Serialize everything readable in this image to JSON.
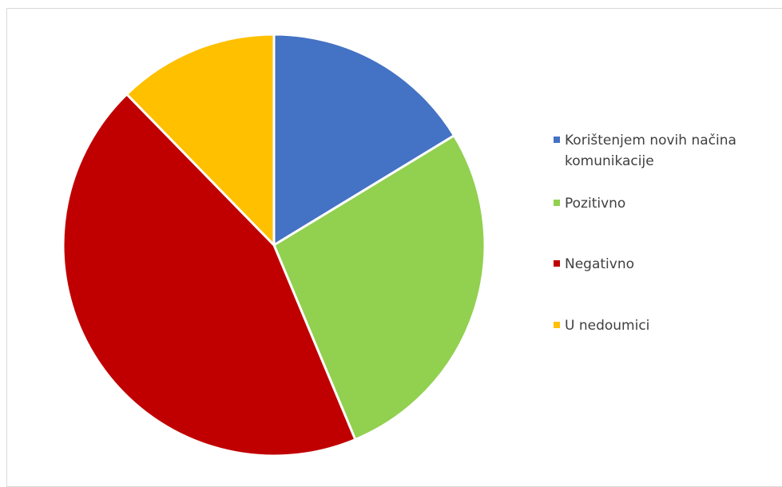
{
  "chart_data": {
    "type": "pie",
    "slices": [
      {
        "label": "Korištenjem novih načina komunikacije",
        "value": 16.3,
        "color": "#4472C4"
      },
      {
        "label": "Pozitivno",
        "value": 27.4,
        "color": "#92D050"
      },
      {
        "label": "Negativno",
        "value": 44.0,
        "color": "#C00000"
      },
      {
        "label": "U nedoumici",
        "value": 12.3,
        "color": "#FFC000"
      }
    ],
    "legend_position": "right",
    "start_angle": "12 o'clock, clockwise"
  },
  "legend": {
    "items": [
      {
        "label": "Korištenjem novih načina komunikacije",
        "color": "#4472C4"
      },
      {
        "label": "Pozitivno",
        "color": "#92D050"
      },
      {
        "label": "Negativno",
        "color": "#C00000"
      },
      {
        "label": "U nedoumici",
        "color": "#FFC000"
      }
    ]
  }
}
